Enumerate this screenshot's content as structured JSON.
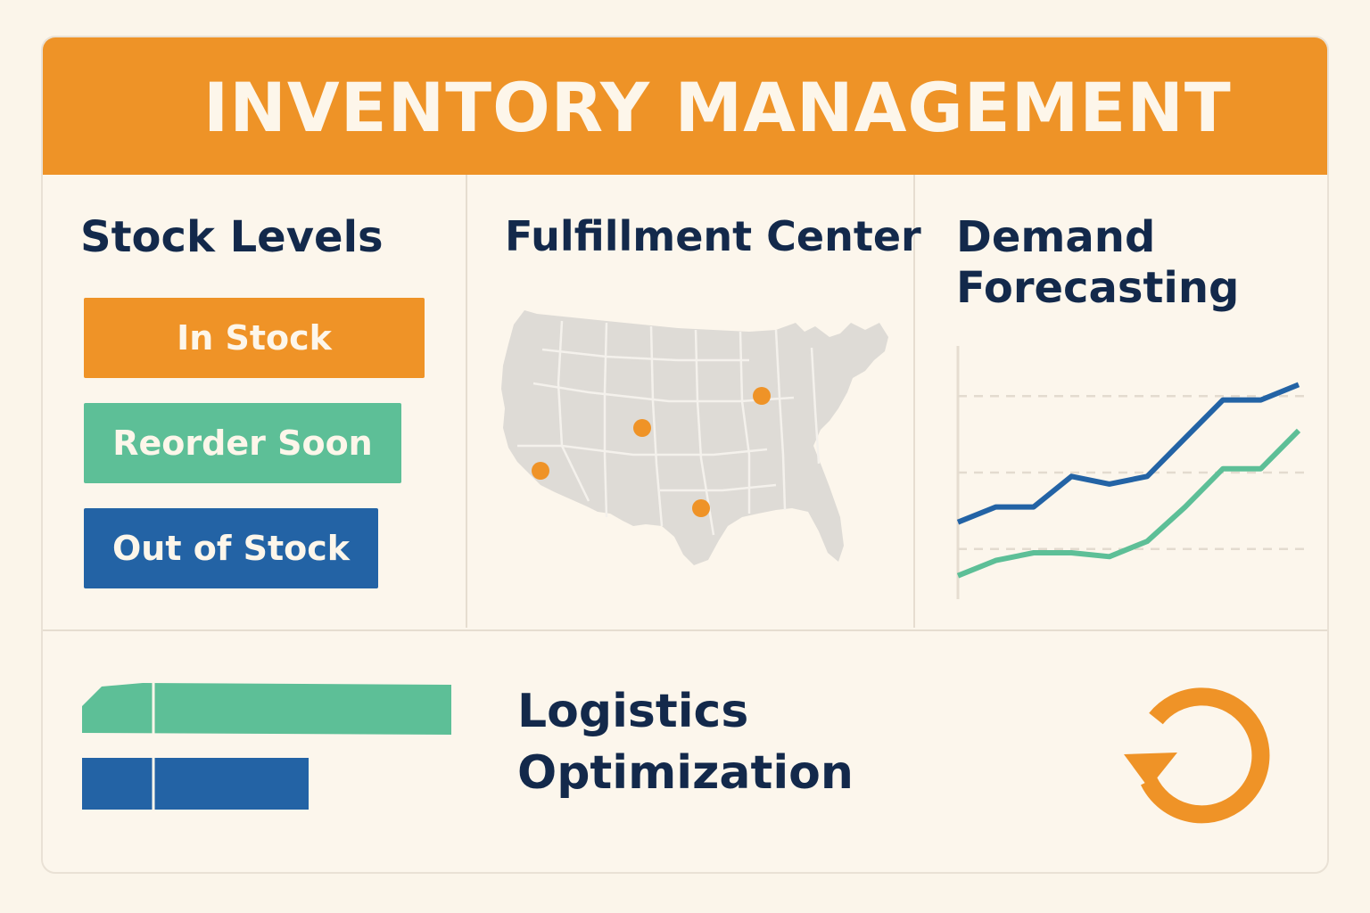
{
  "header": {
    "title": "INVENTORY MANAGEMENT"
  },
  "stock_levels": {
    "title": "Stock Levels",
    "items": [
      {
        "label": "In Stock",
        "color": "#ef9327"
      },
      {
        "label": "Reorder Soon",
        "color": "#5dbf97"
      },
      {
        "label": "Out of Stock",
        "color": "#2363a5"
      }
    ]
  },
  "fulfillment": {
    "title": "Fulfillment Center",
    "map_color": "#dedbd6",
    "marker_color": "#ef9327"
  },
  "demand": {
    "title_line1": "Demand",
    "title_line2": "Forecasting",
    "chart_data": {
      "type": "line",
      "series": [
        {
          "values": [
            2.2,
            2.6,
            2.6,
            3.4,
            3.2,
            3.4,
            4.4,
            5.4,
            5.4,
            5.8
          ],
          "color": "#2363a5"
        },
        {
          "values": [
            0.8,
            1.2,
            1.4,
            1.4,
            1.3,
            1.7,
            2.6,
            3.6,
            3.6,
            4.6
          ],
          "color": "#5dbf97"
        }
      ],
      "ylim": [
        0,
        7
      ],
      "grid": true
    }
  },
  "logistics": {
    "title_line1": "Logistics",
    "title_line2": "Optimization",
    "bar_colors": [
      "#5dbf97",
      "#2363a5"
    ],
    "icon": "refresh-icon",
    "icon_color": "#ef9327"
  }
}
